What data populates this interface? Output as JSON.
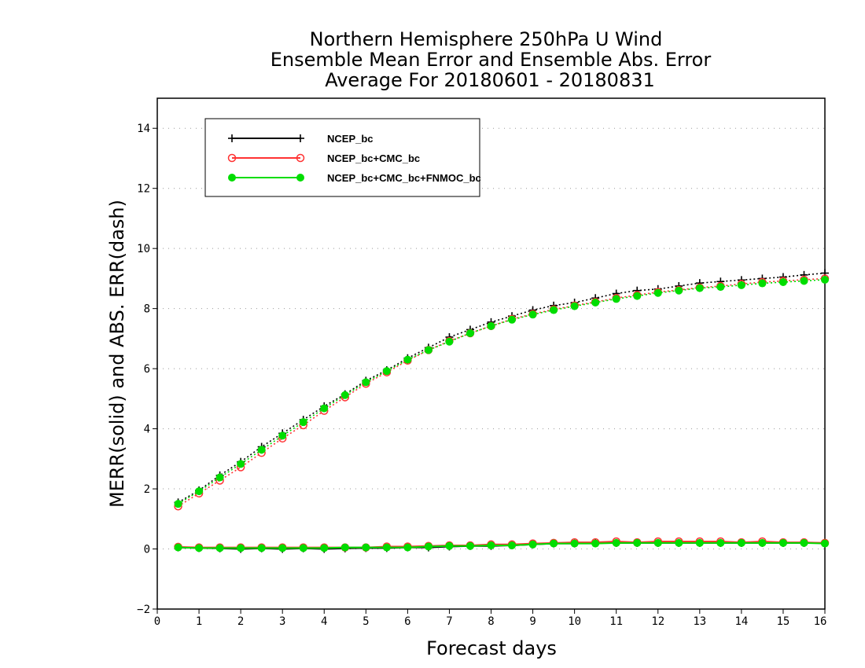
{
  "chart_data": {
    "type": "line",
    "title": [
      "Northern Hemisphere 250hPa U Wind",
      "Ensemble Mean Error and Ensemble Abs. Error",
      "Average For 20180601 - 20180831"
    ],
    "xlabel": "Forecast days",
    "ylabel": "MERR(solid) and ABS. ERR(dash)",
    "xlim": [
      0,
      16
    ],
    "ylim": [
      -2,
      15
    ],
    "xticks": [
      "0",
      "1",
      "2",
      "3",
      "4",
      "5",
      "6",
      "7",
      "8",
      "9",
      "10",
      "11",
      "12",
      "13",
      "14",
      "15",
      "16"
    ],
    "yticks": [
      "-2",
      "0",
      "2",
      "4",
      "6",
      "8",
      "10",
      "12",
      "14"
    ],
    "grid": "horizontal dotted",
    "legend_position": "top-left",
    "x": [
      0.5,
      1,
      1.5,
      2,
      2.5,
      3,
      3.5,
      4,
      4.5,
      5,
      5.5,
      6,
      6.5,
      7,
      7.5,
      8,
      8.5,
      9,
      9.5,
      10,
      10.5,
      11,
      11.5,
      12,
      12.5,
      13,
      13.5,
      14,
      14.5,
      15,
      15.5,
      16
    ],
    "series": [
      {
        "name": "NCEP_bc",
        "color": "#000000",
        "marker": "plus",
        "merr": [
          0.05,
          0.03,
          0.02,
          0.0,
          0.02,
          0.0,
          0.02,
          0.0,
          0.02,
          0.03,
          0.03,
          0.05,
          0.05,
          0.08,
          0.1,
          0.1,
          0.12,
          0.15,
          0.18,
          0.18,
          0.2,
          0.2,
          0.2,
          0.2,
          0.2,
          0.2,
          0.2,
          0.2,
          0.2,
          0.2,
          0.2,
          0.2
        ],
        "abs_err": [
          1.55,
          1.95,
          2.45,
          2.9,
          3.4,
          3.85,
          4.3,
          4.75,
          5.15,
          5.6,
          5.95,
          6.35,
          6.7,
          7.05,
          7.3,
          7.55,
          7.75,
          7.95,
          8.1,
          8.2,
          8.35,
          8.5,
          8.6,
          8.65,
          8.75,
          8.85,
          8.9,
          8.95,
          9.0,
          9.05,
          9.12,
          9.18
        ]
      },
      {
        "name": "NCEP_bc+CMC_bc",
        "color": "#ff3333",
        "marker": "open-circle",
        "merr": [
          0.07,
          0.05,
          0.05,
          0.05,
          0.05,
          0.05,
          0.05,
          0.05,
          0.05,
          0.05,
          0.08,
          0.08,
          0.1,
          0.12,
          0.12,
          0.15,
          0.15,
          0.18,
          0.2,
          0.22,
          0.22,
          0.25,
          0.22,
          0.25,
          0.25,
          0.25,
          0.25,
          0.22,
          0.25,
          0.22,
          0.22,
          0.2
        ],
        "abs_err": [
          1.42,
          1.85,
          2.28,
          2.72,
          3.2,
          3.68,
          4.12,
          4.6,
          5.05,
          5.5,
          5.88,
          6.27,
          6.62,
          6.92,
          7.18,
          7.42,
          7.65,
          7.82,
          7.97,
          8.1,
          8.22,
          8.35,
          8.45,
          8.55,
          8.62,
          8.7,
          8.75,
          8.82,
          8.88,
          8.92,
          8.96,
          9.0
        ]
      },
      {
        "name": "NCEP_bc+CMC_bc+FNMOC_bc",
        "color": "#00dd00",
        "marker": "filled-circle",
        "merr": [
          0.05,
          0.03,
          0.03,
          0.03,
          0.03,
          0.03,
          0.03,
          0.03,
          0.05,
          0.05,
          0.05,
          0.05,
          0.08,
          0.1,
          0.1,
          0.12,
          0.12,
          0.15,
          0.18,
          0.18,
          0.18,
          0.2,
          0.2,
          0.2,
          0.2,
          0.2,
          0.2,
          0.2,
          0.2,
          0.2,
          0.2,
          0.18
        ],
        "abs_err": [
          1.5,
          1.92,
          2.38,
          2.83,
          3.3,
          3.77,
          4.22,
          4.68,
          5.12,
          5.55,
          5.92,
          6.3,
          6.62,
          6.9,
          7.18,
          7.42,
          7.63,
          7.8,
          7.95,
          8.08,
          8.2,
          8.32,
          8.42,
          8.52,
          8.6,
          8.68,
          8.72,
          8.78,
          8.84,
          8.88,
          8.92,
          8.96
        ]
      }
    ]
  }
}
